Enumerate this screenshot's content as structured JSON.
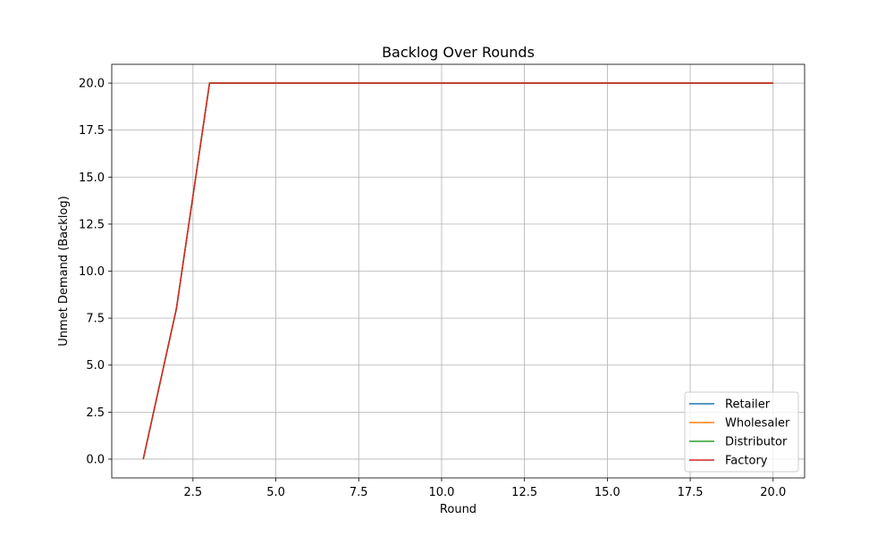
{
  "chart_data": {
    "type": "line",
    "title": "Backlog Over Rounds",
    "xlabel": "Round",
    "ylabel": "Unmet Demand (Backlog)",
    "xlim": [
      0.05,
      20.95
    ],
    "ylim": [
      -1.0,
      21.0
    ],
    "xticks": [
      2.5,
      5.0,
      7.5,
      10.0,
      12.5,
      15.0,
      17.5,
      20.0
    ],
    "xtick_labels": [
      "2.5",
      "5.0",
      "7.5",
      "10.0",
      "12.5",
      "15.0",
      "17.5",
      "20.0"
    ],
    "yticks": [
      0.0,
      2.5,
      5.0,
      7.5,
      10.0,
      12.5,
      15.0,
      17.5,
      20.0
    ],
    "ytick_labels": [
      "0.0",
      "2.5",
      "5.0",
      "7.5",
      "10.0",
      "12.5",
      "15.0",
      "17.5",
      "20.0"
    ],
    "grid": true,
    "legend_position": "lower-right",
    "x": [
      1,
      2,
      3,
      4,
      5,
      6,
      7,
      8,
      9,
      10,
      11,
      12,
      13,
      14,
      15,
      16,
      17,
      18,
      19,
      20
    ],
    "series": [
      {
        "name": "Retailer",
        "color": "#1f77b4",
        "values": [
          0,
          8,
          20,
          20,
          20,
          20,
          20,
          20,
          20,
          20,
          20,
          20,
          20,
          20,
          20,
          20,
          20,
          20,
          20,
          20
        ]
      },
      {
        "name": "Wholesaler",
        "color": "#ff7f0e",
        "values": [
          0,
          8,
          20,
          20,
          20,
          20,
          20,
          20,
          20,
          20,
          20,
          20,
          20,
          20,
          20,
          20,
          20,
          20,
          20,
          20
        ]
      },
      {
        "name": "Distributor",
        "color": "#2ca02c",
        "values": [
          0,
          8,
          20,
          20,
          20,
          20,
          20,
          20,
          20,
          20,
          20,
          20,
          20,
          20,
          20,
          20,
          20,
          20,
          20,
          20
        ]
      },
      {
        "name": "Factory",
        "color": "#d62728",
        "values": [
          0,
          8,
          20,
          20,
          20,
          20,
          20,
          20,
          20,
          20,
          20,
          20,
          20,
          20,
          20,
          20,
          20,
          20,
          20,
          20
        ]
      }
    ]
  }
}
